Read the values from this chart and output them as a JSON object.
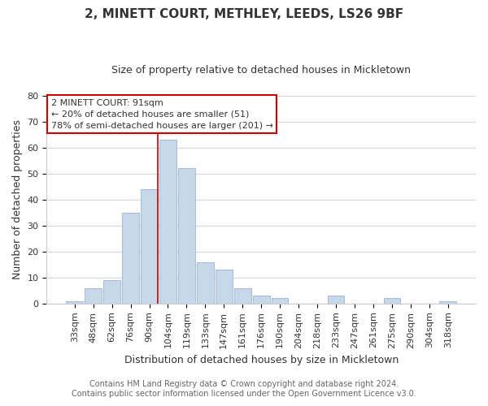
{
  "title_line1": "2, MINETT COURT, METHLEY, LEEDS, LS26 9BF",
  "title_line2": "Size of property relative to detached houses in Mickletown",
  "xlabel": "Distribution of detached houses by size in Mickletown",
  "ylabel": "Number of detached properties",
  "bar_color": "#c8d8eb",
  "bar_edge_color": "#a8c0d6",
  "categories": [
    "33sqm",
    "48sqm",
    "62sqm",
    "76sqm",
    "90sqm",
    "104sqm",
    "119sqm",
    "133sqm",
    "147sqm",
    "161sqm",
    "176sqm",
    "190sqm",
    "204sqm",
    "218sqm",
    "233sqm",
    "247sqm",
    "261sqm",
    "275sqm",
    "290sqm",
    "304sqm",
    "318sqm"
  ],
  "values": [
    1,
    6,
    9,
    35,
    44,
    63,
    52,
    16,
    13,
    6,
    3,
    2,
    0,
    0,
    3,
    0,
    0,
    2,
    0,
    0,
    1
  ],
  "ylim": [
    0,
    80
  ],
  "yticks": [
    0,
    10,
    20,
    30,
    40,
    50,
    60,
    70,
    80
  ],
  "annotation_text_line1": "2 MINETT COURT: 91sqm",
  "annotation_text_line2": "← 20% of detached houses are smaller (51)",
  "annotation_text_line3": "78% of semi-detached houses are larger (201) →",
  "marker_line_color": "#cc0000",
  "grid_color": "#d8d8d8",
  "footer_line1": "Contains HM Land Registry data © Crown copyright and database right 2024.",
  "footer_line2": "Contains public sector information licensed under the Open Government Licence v3.0.",
  "background_color": "#ffffff",
  "title_fontsize": 11,
  "subtitle_fontsize": 9,
  "ylabel_fontsize": 9,
  "xlabel_fontsize": 9,
  "tick_fontsize": 8,
  "annotation_fontsize": 8,
  "footer_fontsize": 7
}
